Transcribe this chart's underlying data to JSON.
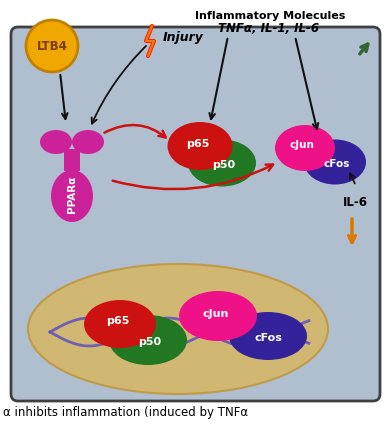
{
  "bg_color": "#ffffff",
  "cell_bg": "#b0bfcf",
  "cell_border": "#404040",
  "nucleus_color": "#d4b86a",
  "nucleus_edge": "#c09840",
  "ltb4_color": "#f0a800",
  "ltb4_edge": "#c08000",
  "ltb4_text": "LTB4",
  "ltb4_text_color": "#7a3c00",
  "ppar_color": "#cc2299",
  "p65_color": "#cc1111",
  "p50_color": "#227722",
  "cjun_color": "#ee1188",
  "cfos_color": "#332299",
  "dna_color": "#6655bb",
  "title_line1": "Inflammatory Molecules",
  "title_line2": "TNFα, IL-1, IL-6",
  "injury_text": "Injury",
  "il6_text": "IL-6",
  "caption": "α inhibits inflammation (induced by TNFα",
  "arrow_inhibit_color": "#cc1111",
  "arrow_black_color": "#111111",
  "arrow_green_color": "#336633",
  "arrow_orange_color": "#dd7700"
}
